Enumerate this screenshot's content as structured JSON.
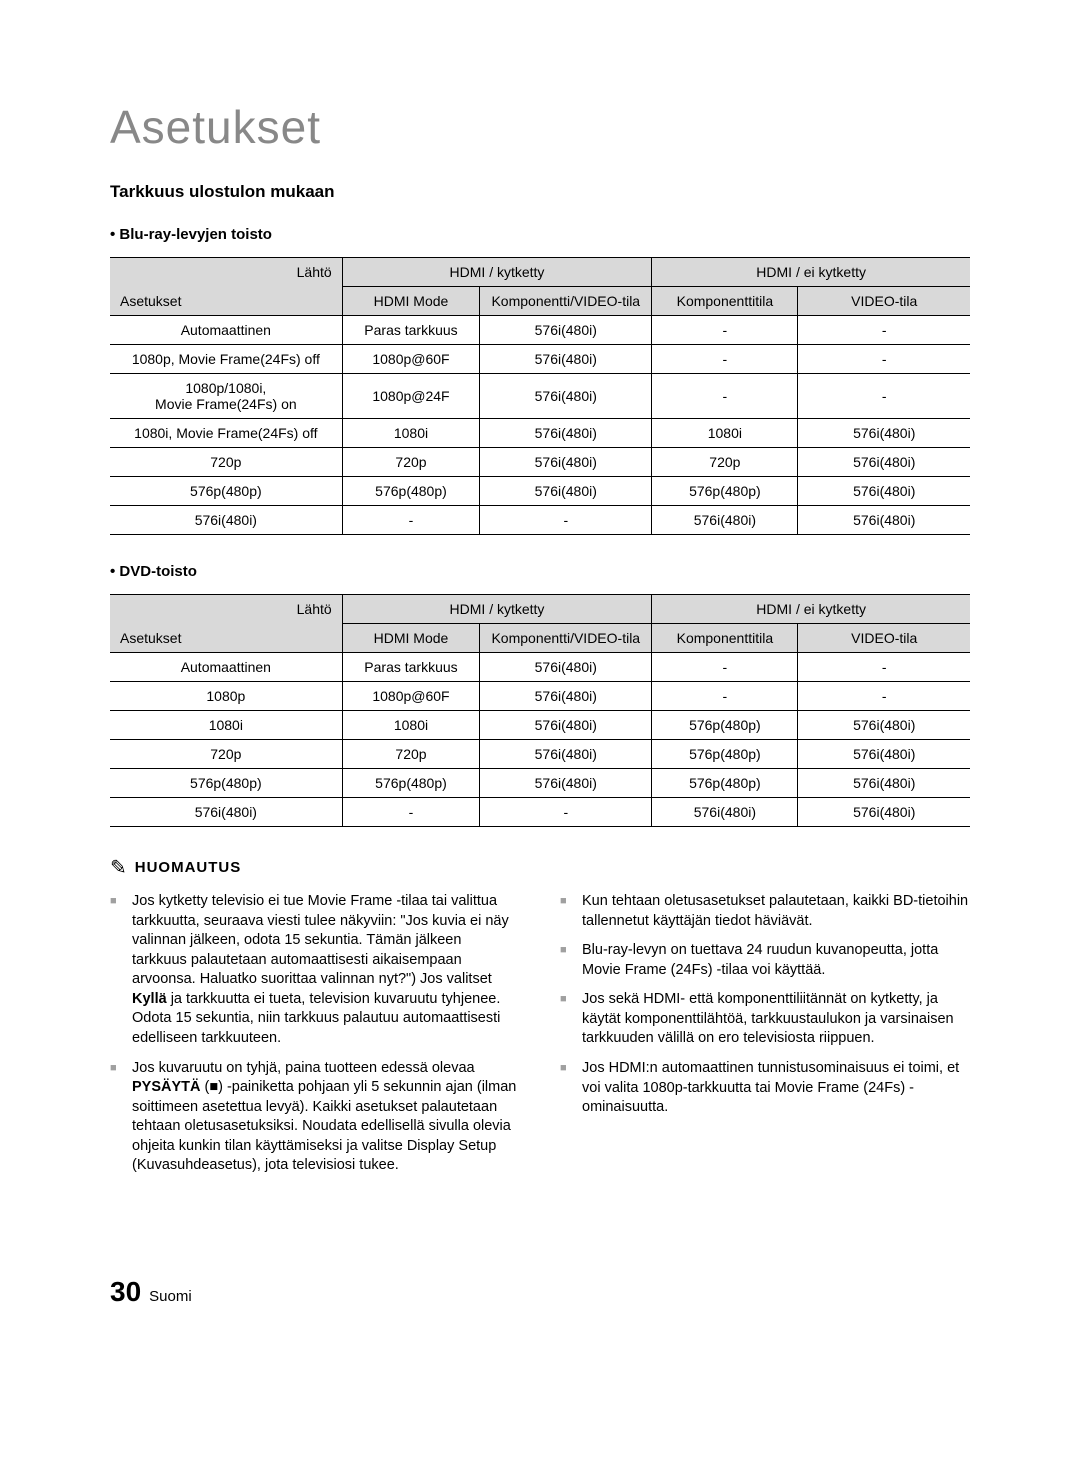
{
  "page_title": "Asetukset",
  "section_heading": "Tarkkuus ulostulon mukaan",
  "table1": {
    "subheading": "• Blu-ray-levyjen toisto",
    "lahto": "Lähtö",
    "asetukset": "Asetukset",
    "hdmi_k": "HDMI / kytketty",
    "hdmi_ek": "HDMI / ei kytketty",
    "cols": [
      "HDMI Mode",
      "Komponentti/VIDEO-tila",
      "Komponenttitila",
      "VIDEO-tila"
    ],
    "rows": [
      [
        "Automaattinen",
        "Paras tarkkuus",
        "576i(480i)",
        "-",
        "-"
      ],
      [
        "1080p, Movie Frame(24Fs) off",
        "1080p@60F",
        "576i(480i)",
        "-",
        "-"
      ],
      [
        "1080p/1080i,\nMovie Frame(24Fs) on",
        "1080p@24F",
        "576i(480i)",
        "-",
        "-"
      ],
      [
        "1080i, Movie Frame(24Fs) off",
        "1080i",
        "576i(480i)",
        "1080i",
        "576i(480i)"
      ],
      [
        "720p",
        "720p",
        "576i(480i)",
        "720p",
        "576i(480i)"
      ],
      [
        "576p(480p)",
        "576p(480p)",
        "576i(480i)",
        "576p(480p)",
        "576i(480i)"
      ],
      [
        "576i(480i)",
        "-",
        "-",
        "576i(480i)",
        "576i(480i)"
      ]
    ]
  },
  "table2": {
    "subheading": "• DVD-toisto",
    "lahto": "Lähtö",
    "asetukset": "Asetukset",
    "hdmi_k": "HDMI / kytketty",
    "hdmi_ek": "HDMI / ei kytketty",
    "cols": [
      "HDMI Mode",
      "Komponentti/VIDEO-tila",
      "Komponenttitila",
      "VIDEO-tila"
    ],
    "rows": [
      [
        "Automaattinen",
        "Paras tarkkuus",
        "576i(480i)",
        "-",
        "-"
      ],
      [
        "1080p",
        "1080p@60F",
        "576i(480i)",
        "-",
        "-"
      ],
      [
        "1080i",
        "1080i",
        "576i(480i)",
        "576p(480p)",
        "576i(480i)"
      ],
      [
        "720p",
        "720p",
        "576i(480i)",
        "576p(480p)",
        "576i(480i)"
      ],
      [
        "576p(480p)",
        "576p(480p)",
        "576i(480i)",
        "576p(480p)",
        "576i(480i)"
      ],
      [
        "576i(480i)",
        "-",
        "-",
        "576i(480i)",
        "576i(480i)"
      ]
    ]
  },
  "note_label": "HUOMAUTUS",
  "notes_left": [
    {
      "pre": "Jos kytketty televisio ei tue Movie Frame -tilaa tai valittua tarkkuutta, seuraava viesti tulee näkyviin: \"Jos kuvia ei näy valinnan jälkeen, odota 15 sekuntia. Tämän jälkeen tarkkuus palautetaan automaattisesti aikaisempaan arvoonsa. Haluatko suorittaa valinnan nyt?\") Jos valitset ",
      "bold": "Kyllä",
      "post": " ja tarkkuutta ei tueta, television kuvaruutu tyhjenee. Odota 15 sekuntia, niin tarkkuus palautuu automaattisesti edelliseen tarkkuuteen."
    },
    {
      "pre": "Jos kuvaruutu on tyhjä, paina tuotteen edessä olevaa ",
      "bold": "PYSÄYTÄ",
      "post": " (■) -painiketta pohjaan yli 5 sekunnin ajan (ilman soittimeen asetettua levyä). Kaikki asetukset palautetaan tehtaan oletusasetuksiksi. Noudata edellisellä sivulla olevia ohjeita kunkin tilan käyttämiseksi ja valitse Display Setup (Kuvasuhdeasetus), jota televisiosi tukee."
    }
  ],
  "notes_right": [
    {
      "text": "Kun tehtaan oletusasetukset palautetaan, kaikki BD-tietoihin tallennetut käyttäjän tiedot häviävät."
    },
    {
      "text": "Blu-ray-levyn on tuettava 24 ruudun kuvanopeutta, jotta Movie Frame (24Fs) -tilaa voi käyttää."
    },
    {
      "text": "Jos sekä HDMI- että komponenttiliitännät on kytketty, ja käytät komponenttilähtöä, tarkkuustaulukon ja varsinaisen tarkkuuden välillä on ero televisiosta riippuen."
    },
    {
      "text": "Jos HDMI:n automaattinen tunnistusominaisuus ei toimi, et voi valita 1080p-tarkkuutta tai Movie Frame (24Fs) -ominaisuutta."
    }
  ],
  "footer": {
    "num": "30",
    "lang": "Suomi"
  }
}
